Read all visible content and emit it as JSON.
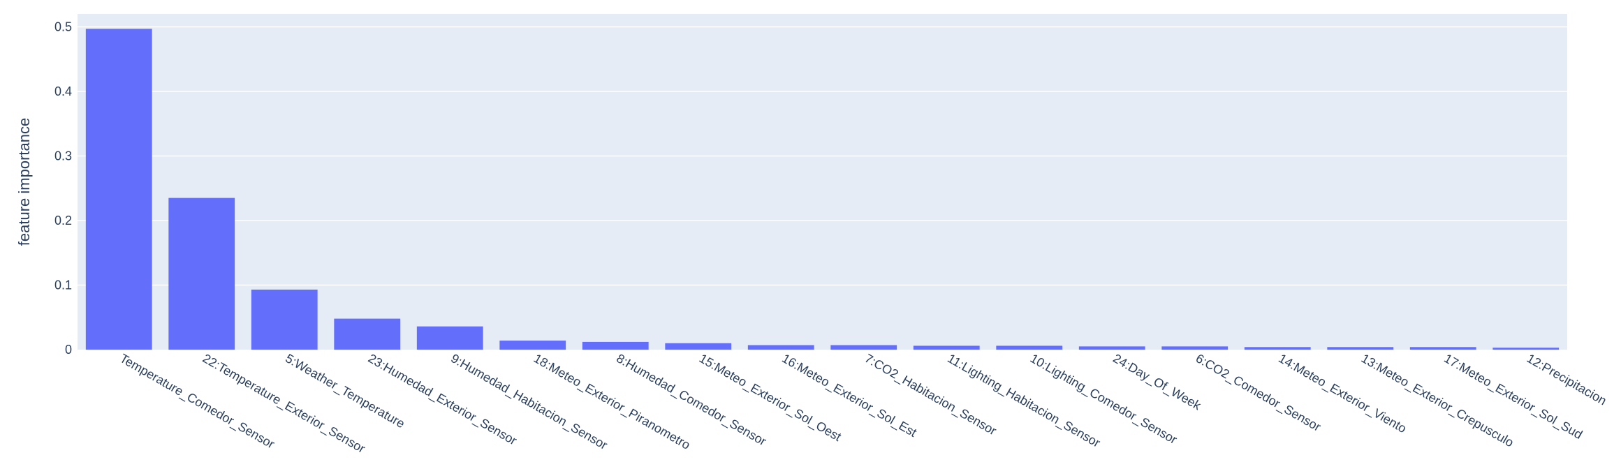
{
  "chart_data": {
    "type": "bar",
    "title": "",
    "xlabel": "",
    "ylabel": "feature importance",
    "ylim": [
      0,
      0.52
    ],
    "yticks": [
      0,
      0.1,
      0.2,
      0.3,
      0.4,
      0.5
    ],
    "ytick_labels": [
      "0",
      "0.1",
      "0.2",
      "0.3",
      "0.4",
      "0.5"
    ],
    "grid": true,
    "legend": "none",
    "colors": {
      "bar": "#636efa",
      "plot_bg": "#e5ecf6",
      "grid": "#ffffff",
      "text": "#2a3f5f"
    },
    "categories": [
      "Temperature_Comedor_Sensor",
      "22:Temperature_Exterior_Sensor",
      "5:Weather_Temperature",
      "23:Humedad_Exterior_Sensor",
      "9:Humedad_Habitacion_Sensor",
      "18:Meteo_Exterior_Piranometro",
      "8:Humedad_Comedor_Sensor",
      "15:Meteo_Exterior_Sol_Oest",
      "16:Meteo_Exterior_Sol_Est",
      "7:CO2_Habitacion_Sensor",
      "11:Lighting_Habitacion_Sensor",
      "10:Lighting_Comedor_Sensor",
      "24:Day_Of_Week",
      "6:CO2_Comedor_Sensor",
      "14:Meteo_Exterior_Viento",
      "13:Meteo_Exterior_Crepusculo",
      "17:Meteo_Exterior_Sol_Sud",
      "12:Precipitacion"
    ],
    "values": [
      0.497,
      0.235,
      0.093,
      0.048,
      0.036,
      0.014,
      0.012,
      0.01,
      0.007,
      0.007,
      0.006,
      0.006,
      0.005,
      0.005,
      0.004,
      0.004,
      0.004,
      0.003
    ]
  }
}
